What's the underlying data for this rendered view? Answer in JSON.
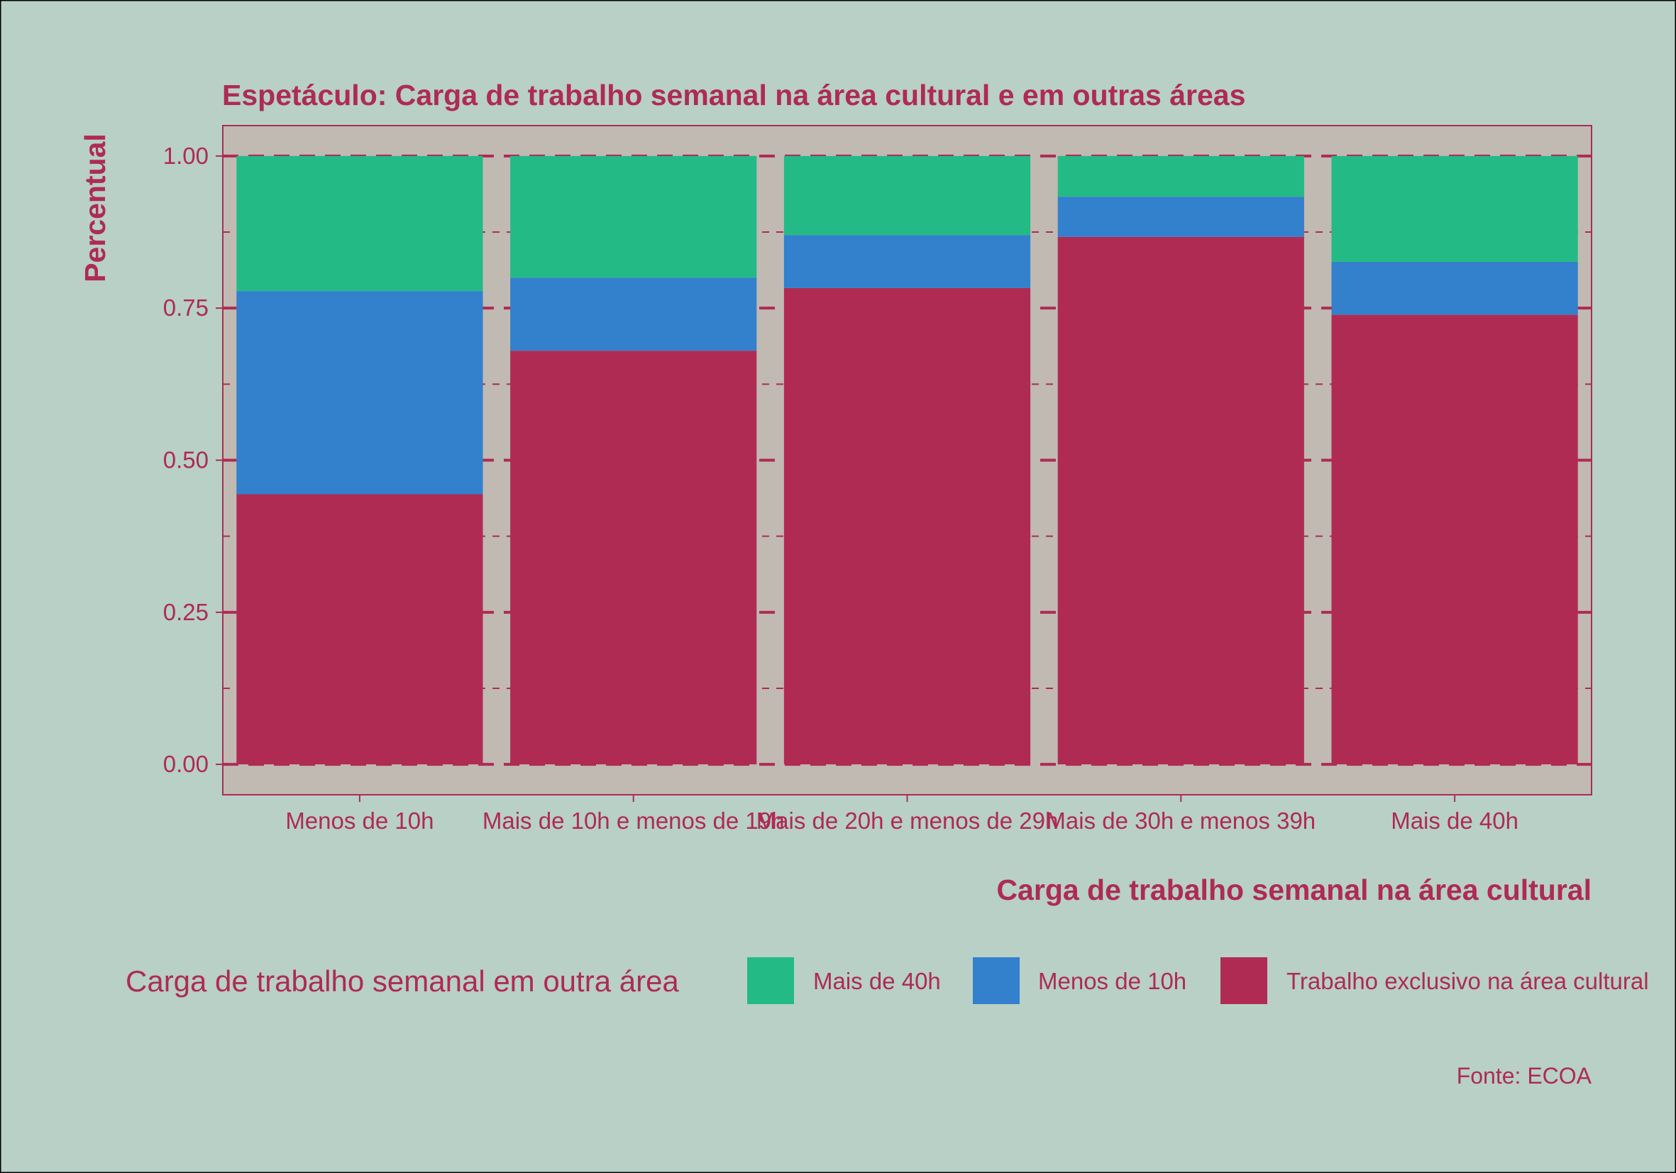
{
  "colors": {
    "background": "#b8d0c6",
    "panel": "#c0bab3",
    "accent": "#ae2b54",
    "series_green": "#24ba86",
    "series_blue": "#3380cc",
    "series_red": "#b02b54"
  },
  "chart_data": {
    "type": "bar",
    "stacked": true,
    "title": "Espetáculo: Carga de trabalho semanal na área cultural e em outras áreas",
    "xlabel": "Carga de trabalho semanal na área cultural",
    "ylabel": "Percentual",
    "caption": "Fonte: ECOA",
    "categories": [
      "Menos de 10h",
      "Mais de 10h e menos de 19h",
      "Mais de 20h e menos de 29h",
      "Mais de 30h e menos 39h",
      "Mais de 40h"
    ],
    "series": [
      {
        "name": "Trabalho exclusivo na área cultural",
        "values": [
          0.444,
          0.68,
          0.783,
          0.867,
          0.739
        ]
      },
      {
        "name": "Menos de 10h",
        "values": [
          0.334,
          0.12,
          0.087,
          0.066,
          0.087
        ]
      },
      {
        "name": "Mais de 40h",
        "values": [
          0.222,
          0.2,
          0.13,
          0.067,
          0.174
        ]
      }
    ],
    "stack_order_top_to_bottom": [
      "Mais de 40h",
      "Menos de 10h",
      "Trabalho exclusivo na área cultural"
    ],
    "ylim": [
      -0.05,
      1.05
    ],
    "yticks": [
      0.0,
      0.25,
      0.5,
      0.75,
      1.0
    ],
    "ytick_labels": [
      "0.00",
      "0.25",
      "0.50",
      "0.75",
      "1.00"
    ],
    "grid": true,
    "legend": {
      "title": "Carga de trabalho semanal em outra área",
      "placement": "bottom",
      "entries": [
        "Mais de 40h",
        "Menos de 10h",
        "Trabalho exclusivo na área cultural"
      ]
    }
  }
}
